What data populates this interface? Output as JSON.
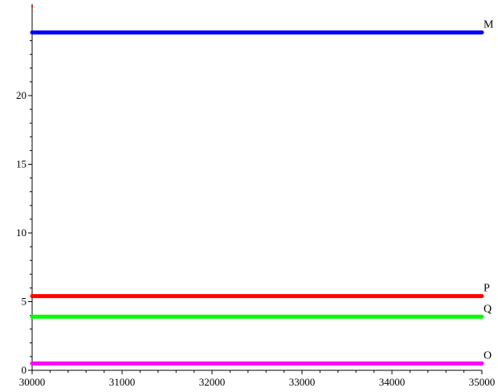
{
  "chart_data": {
    "type": "line",
    "title": "",
    "xlabel": "",
    "ylabel": "",
    "xlim": [
      30000,
      35000
    ],
    "ylim": [
      0,
      25
    ],
    "xticks": [
      30000,
      31000,
      32000,
      33000,
      34000,
      35000
    ],
    "xtick_labels": [
      "30000",
      "31000",
      "32000",
      "33000",
      "34000",
      "35000"
    ],
    "yticks": [
      0,
      5,
      10,
      15,
      20
    ],
    "ytick_labels": [
      "0",
      "5",
      "10",
      "15",
      "20"
    ],
    "grid": false,
    "series": [
      {
        "name": "M",
        "color": "#0000ff",
        "x": [
          30000,
          35000
        ],
        "y": [
          24.6,
          24.6
        ]
      },
      {
        "name": "P",
        "color": "#ff0000",
        "x": [
          30000,
          35000
        ],
        "y": [
          5.4,
          5.4
        ]
      },
      {
        "name": "Q",
        "color": "#00ff00",
        "x": [
          30000,
          35000
        ],
        "y": [
          3.9,
          3.9
        ]
      },
      {
        "name": "O",
        "color": "#ff00ff",
        "x": [
          30000,
          35000
        ],
        "y": [
          0.5,
          0.5
        ]
      }
    ],
    "stray_mark_color": "#ff0000"
  }
}
